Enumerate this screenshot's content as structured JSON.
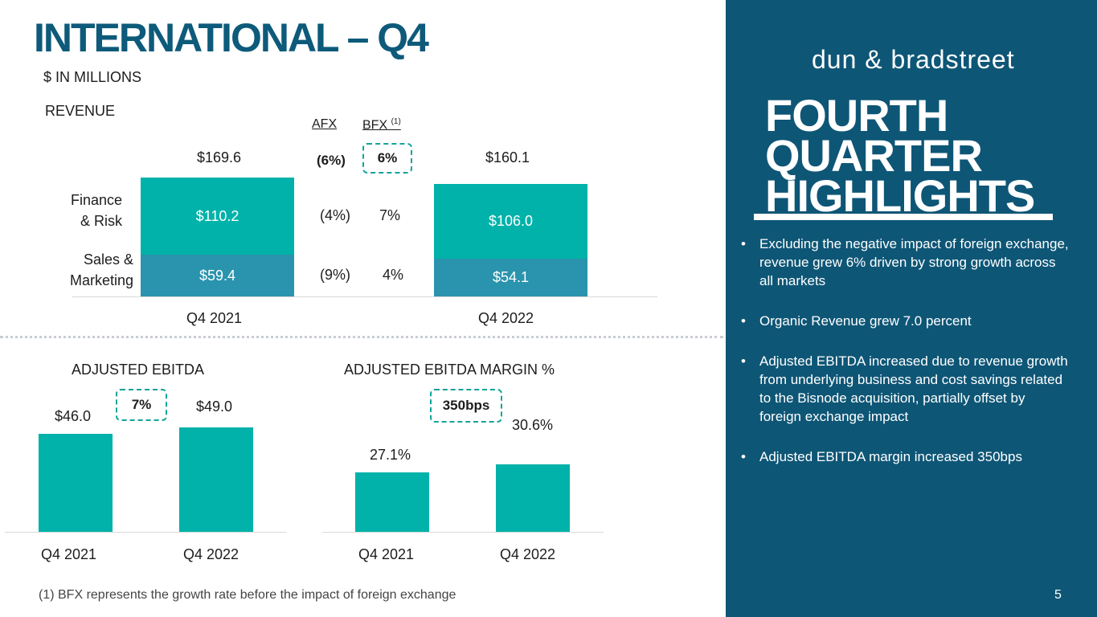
{
  "title": "INTERNATIONAL – Q4",
  "subtitle": "$ IN MILLIONS",
  "colors": {
    "navy": "#0e5676",
    "teal": "#00b2a9",
    "steel": "#2a93ad",
    "title": "#0d5a7a"
  },
  "revenue": {
    "label": "REVENUE",
    "afx_header": "AFX",
    "bfx_header": "BFX",
    "bfx_note": "(1)",
    "row_labels": {
      "finance_line1": "Finance",
      "finance_line2": "& Risk",
      "sales_line1": "Sales &",
      "sales_line2": "Marketing"
    },
    "totals": [
      "$169.6",
      "$160.1"
    ],
    "finance_values": [
      "$110.2",
      "$106.0"
    ],
    "sales_values": [
      "$59.4",
      "$54.1"
    ],
    "categories": [
      "Q4 2021",
      "Q4 2022"
    ],
    "afx": {
      "total": "(6%)",
      "finance": "(4%)",
      "sales": "(9%)"
    },
    "bfx": {
      "total": "6%",
      "finance": "7%",
      "sales": "4%"
    }
  },
  "ebitda": {
    "label": "ADJUSTED EBITDA",
    "value_labels": [
      "$46.0",
      "$49.0"
    ],
    "categories": [
      "Q4 2021",
      "Q4 2022"
    ],
    "growth": "7%"
  },
  "margin": {
    "label": "ADJUSTED EBITDA MARGIN %",
    "value_labels": [
      "27.1%",
      "30.6%"
    ],
    "categories": [
      "Q4 2021",
      "Q4 2022"
    ],
    "growth": "350bps"
  },
  "chart_data": [
    {
      "type": "bar",
      "stacked": true,
      "title": "REVENUE",
      "categories": [
        "Q4 2021",
        "Q4 2022"
      ],
      "series": [
        {
          "name": "Sales & Marketing",
          "values": [
            59.4,
            54.1
          ],
          "color": "#2a93ad"
        },
        {
          "name": "Finance & Risk",
          "values": [
            110.2,
            106.0
          ],
          "color": "#00b2a9"
        }
      ],
      "totals": [
        169.6,
        160.1
      ]
    },
    {
      "type": "bar",
      "title": "ADJUSTED EBITDA",
      "categories": [
        "Q4 2021",
        "Q4 2022"
      ],
      "values": [
        46.0,
        49.0
      ],
      "color": "#00b2a9"
    },
    {
      "type": "bar",
      "title": "ADJUSTED EBITDA MARGIN %",
      "categories": [
        "Q4 2021",
        "Q4 2022"
      ],
      "values": [
        27.1,
        30.6
      ],
      "color": "#00b2a9"
    }
  ],
  "sidebar": {
    "logo": "dun & bradstreet",
    "heading_lines": [
      "FOURTH",
      "QUARTER",
      "HIGHLIGHTS"
    ],
    "bullets": [
      "Excluding the negative impact of foreign exchange, revenue grew 6% driven by strong growth across all markets",
      "Organic Revenue grew 7.0 percent",
      "Adjusted EBITDA increased due to revenue growth from underlying business and cost savings related to the Bisnode acquisition, partially offset by foreign exchange impact",
      "Adjusted EBITDA margin increased 350bps"
    ]
  },
  "footnote": "(1)  BFX represents the growth rate before the impact of foreign exchange",
  "page_number": "5"
}
